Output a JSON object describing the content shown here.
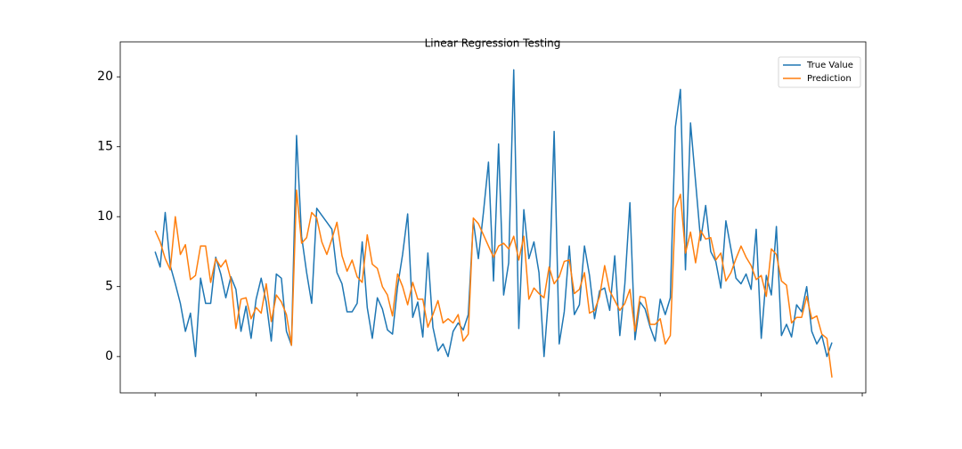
{
  "chart_data": {
    "type": "line",
    "title": "Linear Regression Testing",
    "x": [
      0,
      1,
      2,
      3,
      4,
      5,
      6,
      7,
      8,
      9,
      10,
      11,
      12,
      13,
      14,
      15,
      16,
      17,
      18,
      19,
      20,
      21,
      22,
      23,
      24,
      25,
      26,
      27,
      28,
      29,
      30,
      31,
      32,
      33,
      34,
      35,
      36,
      37,
      38,
      39,
      40,
      41,
      42,
      43,
      44,
      45,
      46,
      47,
      48,
      49,
      50,
      51,
      52,
      53,
      54,
      55,
      56,
      57,
      58,
      59,
      60,
      61,
      62,
      63,
      64,
      65,
      66,
      67,
      68,
      69,
      70,
      71,
      72,
      73,
      74,
      75,
      76,
      77,
      78,
      79,
      80,
      81,
      82,
      83,
      84,
      85,
      86,
      87,
      88,
      89,
      90,
      91,
      92,
      93,
      94,
      95,
      96,
      97,
      98,
      99,
      100,
      101,
      102,
      103,
      104,
      105,
      106,
      107,
      108,
      109,
      110,
      111,
      112,
      113,
      114,
      115,
      116,
      117,
      118,
      119,
      120,
      121,
      122,
      123,
      124,
      125,
      126,
      127,
      128,
      129,
      130,
      131,
      132,
      133,
      134
    ],
    "series": [
      {
        "name": "True Value",
        "color": "#1f77b4",
        "values": [
          7.5,
          6.4,
          10.3,
          6.5,
          5.2,
          3.8,
          1.8,
          3.1,
          0.0,
          5.6,
          3.8,
          3.8,
          7.1,
          5.9,
          4.2,
          5.7,
          4.8,
          1.8,
          3.6,
          1.3,
          4.1,
          5.6,
          3.9,
          1.1,
          5.9,
          5.6,
          1.8,
          0.8,
          15.8,
          8.6,
          6.0,
          3.8,
          10.6,
          10.1,
          9.6,
          9.1,
          6.0,
          5.2,
          3.2,
          3.2,
          3.8,
          8.2,
          3.5,
          1.3,
          4.2,
          3.4,
          1.9,
          1.6,
          5.0,
          7.3,
          10.2,
          2.8,
          3.9,
          1.4,
          7.4,
          2.1,
          0.4,
          0.9,
          0.0,
          1.8,
          2.4,
          1.9,
          3.0,
          9.7,
          7.0,
          10.3,
          13.9,
          5.4,
          15.2,
          4.4,
          6.7,
          20.5,
          2.0,
          10.5,
          7.0,
          8.2,
          6.0,
          0.0,
          4.8,
          16.1,
          0.9,
          3.2,
          7.9,
          3.0,
          3.7,
          7.9,
          5.8,
          2.7,
          4.7,
          4.9,
          3.3,
          7.2,
          1.5,
          5.2,
          11.0,
          1.2,
          3.9,
          3.4,
          2.1,
          1.1,
          4.1,
          3.0,
          4.2,
          16.4,
          19.1,
          6.2,
          16.7,
          12.5,
          8.3,
          10.8,
          7.5,
          6.8,
          4.9,
          9.7,
          7.7,
          5.6,
          5.2,
          5.9,
          4.8,
          9.1,
          1.3,
          5.8,
          4.4,
          9.3,
          1.5,
          2.3,
          1.4,
          3.7,
          3.2,
          5.0,
          1.8,
          0.9,
          1.5,
          0.0,
          1.0
        ]
      },
      {
        "name": "Prediction",
        "color": "#ff7f0e",
        "values": [
          9.0,
          8.2,
          7.0,
          6.2,
          10.0,
          7.3,
          8.0,
          5.5,
          5.8,
          7.9,
          7.9,
          5.3,
          7.0,
          6.4,
          6.9,
          5.5,
          2.0,
          4.1,
          4.2,
          2.7,
          3.5,
          3.1,
          5.2,
          2.5,
          4.4,
          3.9,
          3.0,
          0.8,
          11.9,
          8.1,
          8.5,
          10.3,
          9.9,
          8.2,
          7.3,
          8.4,
          9.6,
          7.2,
          6.1,
          6.9,
          5.7,
          5.3,
          8.7,
          6.6,
          6.3,
          5.0,
          4.4,
          2.9,
          5.9,
          5.0,
          3.7,
          5.3,
          4.1,
          4.1,
          2.1,
          3.0,
          4.0,
          2.4,
          2.7,
          2.4,
          3.0,
          1.1,
          1.6,
          9.9,
          9.5,
          8.7,
          7.9,
          7.1,
          7.9,
          8.1,
          7.7,
          8.6,
          6.9,
          8.6,
          4.1,
          4.9,
          4.5,
          4.2,
          6.4,
          5.2,
          5.7,
          6.8,
          6.9,
          4.5,
          4.8,
          6.0,
          3.1,
          3.3,
          4.3,
          6.5,
          4.7,
          4.0,
          3.3,
          3.8,
          4.8,
          1.8,
          4.3,
          4.2,
          2.3,
          2.3,
          2.7,
          0.9,
          1.5,
          10.6,
          11.6,
          7.4,
          8.9,
          6.7,
          9.0,
          8.4,
          8.5,
          6.9,
          7.4,
          5.4,
          6.0,
          7.0,
          7.9,
          7.1,
          6.5,
          5.5,
          5.8,
          4.3,
          7.7,
          7.3,
          5.4,
          5.1,
          2.4,
          2.8,
          2.8,
          4.3,
          2.7,
          2.9,
          1.6,
          1.3,
          -1.5
        ]
      }
    ],
    "xlim": [
      -6.9,
      140.7
    ],
    "xticks": [
      0,
      20,
      40,
      60,
      80,
      100,
      120,
      140
    ],
    "ylim": [
      -2.6,
      22.5
    ],
    "yticks": [
      0,
      5,
      10,
      15,
      20
    ],
    "legend": "upper right"
  }
}
